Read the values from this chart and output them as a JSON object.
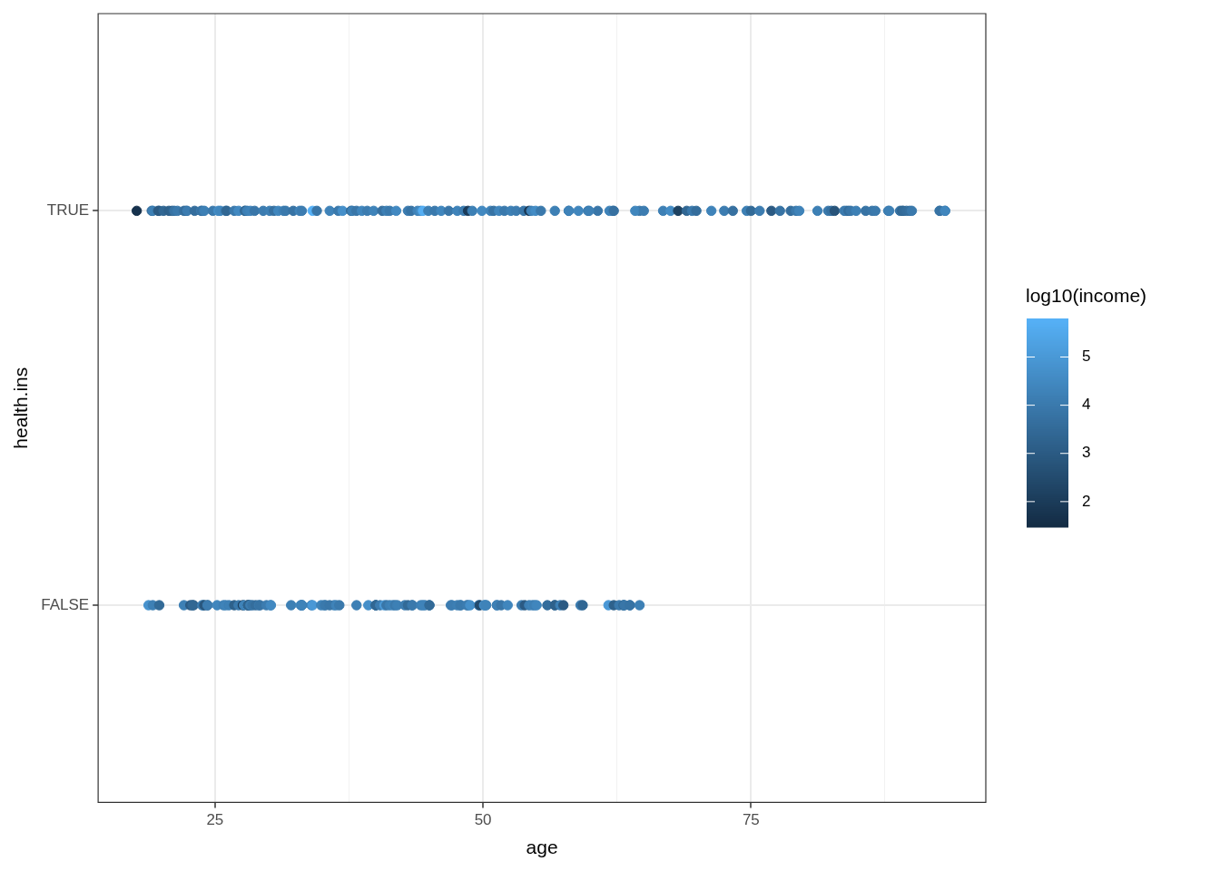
{
  "chart_data": {
    "type": "scatter",
    "xlabel": "age",
    "ylabel": "health.ins",
    "clabel": "log10(income)",
    "xlim": [
      14.1,
      96.9
    ],
    "xticks": [
      25,
      {
        "value": 37.5,
        "label": null
      },
      50,
      {
        "value": 62.5,
        "label": null
      },
      75,
      {
        "value": 87.5,
        "label": null
      }
    ],
    "categories": [
      "TRUE",
      "FALSE"
    ],
    "orientation": "horizontal",
    "clim": [
      1.47,
      5.8
    ],
    "cticks": [
      2,
      3,
      4,
      5
    ],
    "grid": true,
    "marker": "circle",
    "series": [
      {
        "values": [
          17.7,
          19.1,
          19.2,
          19.8,
          19.7,
          20.2,
          20.7,
          21.0,
          21.2,
          21.5,
          22.1,
          22.3,
          22.4,
          23.1,
          23.7,
          23.8,
          24.0,
          24.8,
          25.3,
          25.5,
          26.0,
          26.1,
          26.8,
          27.2,
          27.8,
          27.8,
          28.0,
          28.3,
          28.7,
          29.5,
          30.1,
          30.5,
          30.9,
          31.4,
          31.6,
          32.3,
          32.9,
          33.1,
          34.1,
          34.5,
          35.7,
          36.5,
          36.9,
          37.7,
          37.8,
          38.2,
          38.7,
          39.2,
          39.8,
          40.6,
          41.0,
          41.3,
          41.9,
          43.0,
          43.3,
          43.9,
          44.2,
          44.4,
          44.9,
          45.5,
          46.1,
          46.8,
          47.6,
          48.2,
          48.6,
          49.0,
          49.9,
          50.7,
          51.0,
          51.5,
          52.0,
          52.6,
          53.1,
          53.8,
          54.3,
          54.5,
          54.9,
          55.4,
          56.7,
          58.0,
          58.9,
          59.8,
          60.7,
          58.0,
          59.9,
          62.1,
          61.8,
          62.2,
          64.6,
          64.2,
          65.0,
          66.8,
          67.5,
          68.2,
          69.0,
          69.5,
          69.9,
          71.3,
          72.5,
          73.3,
          74.6,
          75.0,
          75.8,
          76.9,
          77.7,
          78.7,
          79.2,
          79.5,
          81.2,
          82.2,
          82.5,
          82.8,
          83.7,
          83.9,
          84.1,
          84.3,
          84.8,
          85.7,
          86.3,
          86.6,
          87.8,
          87.9,
          88.9,
          89.1,
          89.2,
          89.5,
          89.8,
          90.0,
          92.6,
          92.6,
          93.1,
          93.1
        ],
        "x": [
          "TRUE",
          "TRUE",
          "TRUE",
          "TRUE",
          "TRUE",
          "TRUE",
          "TRUE",
          "TRUE",
          "TRUE",
          "TRUE",
          "TRUE",
          "TRUE",
          "TRUE",
          "TRUE",
          "TRUE",
          "TRUE",
          "TRUE",
          "TRUE",
          "TRUE",
          "TRUE",
          "TRUE",
          "TRUE",
          "TRUE",
          "TRUE",
          "TRUE",
          "TRUE",
          "TRUE",
          "TRUE",
          "TRUE",
          "TRUE",
          "TRUE",
          "TRUE",
          "TRUE",
          "TRUE",
          "TRUE",
          "TRUE",
          "TRUE",
          "TRUE",
          "TRUE",
          "TRUE",
          "TRUE",
          "TRUE",
          "TRUE",
          "TRUE",
          "TRUE",
          "TRUE",
          "TRUE",
          "TRUE",
          "TRUE",
          "TRUE",
          "TRUE",
          "TRUE",
          "TRUE",
          "TRUE",
          "TRUE",
          "TRUE",
          "TRUE",
          "TRUE",
          "TRUE",
          "TRUE",
          "TRUE",
          "TRUE",
          "TRUE",
          "TRUE",
          "TRUE",
          "TRUE",
          "TRUE",
          "TRUE",
          "TRUE",
          "TRUE",
          "TRUE",
          "TRUE",
          "TRUE",
          "TRUE",
          "TRUE",
          "TRUE",
          "TRUE",
          "TRUE",
          "TRUE",
          "TRUE",
          "TRUE",
          "TRUE",
          "TRUE",
          "TRUE",
          "TRUE",
          "TRUE",
          "TRUE",
          "TRUE",
          "TRUE",
          "TRUE",
          "TRUE",
          "TRUE",
          "TRUE",
          "TRUE",
          "TRUE",
          "TRUE",
          "TRUE",
          "TRUE",
          "TRUE",
          "TRUE",
          "TRUE",
          "TRUE",
          "TRUE",
          "TRUE",
          "TRUE",
          "TRUE",
          "TRUE",
          "TRUE",
          "TRUE",
          "TRUE",
          "TRUE",
          "TRUE",
          "TRUE",
          "TRUE",
          "TRUE",
          "TRUE",
          "TRUE",
          "TRUE",
          "TRUE",
          "TRUE",
          "TRUE",
          "TRUE",
          "TRUE",
          "TRUE",
          "TRUE",
          "TRUE",
          "TRUE",
          "TRUE",
          "TRUE",
          "TRUE",
          "TRUE",
          "TRUE"
        ],
        "cvalues": [
          1.7,
          3.6,
          4.2,
          3.8,
          3.0,
          3.4,
          3.2,
          3.3,
          3.8,
          4.0,
          3.7,
          3.5,
          4.1,
          3.6,
          4.0,
          3.8,
          4.2,
          4.0,
          4.6,
          4.4,
          3.9,
          3.4,
          4.0,
          4.5,
          3.6,
          3.5,
          4.2,
          4.3,
          3.9,
          4.1,
          4.2,
          3.7,
          4.4,
          4.2,
          4.0,
          3.8,
          4.3,
          4.1,
          5.8,
          3.9,
          4.3,
          4.0,
          4.7,
          3.3,
          4.2,
          3.9,
          4.4,
          4.1,
          4.3,
          3.7,
          4.2,
          4.0,
          4.5,
          4.1,
          3.8,
          4.3,
          4.6,
          5.7,
          4.2,
          4.0,
          4.4,
          3.9,
          4.3,
          4.1,
          2.0,
          4.2,
          4.5,
          4.3,
          3.8,
          4.4,
          4.0,
          4.2,
          4.1,
          3.9,
          1.8,
          4.3,
          4.6,
          4.0,
          4.2,
          3.8,
          4.4,
          4.1,
          3.9,
          4.3,
          4.2,
          4.0,
          4.3,
          3.7,
          3.9,
          4.4,
          4.1,
          4.2,
          4.6,
          2.2,
          3.4,
          4.0,
          3.6,
          4.3,
          4.1,
          3.7,
          4.2,
          3.5,
          4.1,
          3.0,
          3.8,
          3.6,
          4.0,
          4.3,
          4.2,
          4.0,
          3.7,
          2.8,
          4.0,
          4.1,
          3.6,
          3.9,
          4.2,
          3.8,
          3.9,
          4.0,
          4.1,
          4.2,
          3.8,
          3.3,
          3.5,
          3.6,
          3.7,
          4.0,
          4.1,
          3.8,
          4.0,
          4.4
        ],
        "colors": [
          "#17324d",
          "#346d9c",
          "#3d80b5",
          "#3773a4",
          "#2b5a83",
          "#316793",
          "#2e618b",
          "#2f648f",
          "#3773a4",
          "#3a79ac",
          "#3670a0",
          "#326a97",
          "#3c7cb0",
          "#346d9c",
          "#3a79ac",
          "#3773a4",
          "#3d80b5",
          "#3a79ac",
          "#438cc5",
          "#4086bd",
          "#3976a8",
          "#316793",
          "#3a79ac",
          "#4289c1",
          "#346d9c",
          "#326a97",
          "#3d80b5",
          "#3f83b9",
          "#3976a8",
          "#3c7cb0",
          "#3d80b5",
          "#3670a0",
          "#4086bd",
          "#3d80b5",
          "#3a79ac",
          "#3773a4",
          "#3f83b9",
          "#3c7cb0",
          "#56b1f7",
          "#3976a8",
          "#3f83b9",
          "#3a79ac",
          "#458fc9",
          "#2f648f",
          "#3d80b5",
          "#3976a8",
          "#4086bd",
          "#3c7cb0",
          "#3f83b9",
          "#3670a0",
          "#3d80b5",
          "#3a79ac",
          "#4289c1",
          "#3c7cb0",
          "#3773a4",
          "#3f83b9",
          "#438cc5",
          "#55aef3",
          "#3d80b5",
          "#3a79ac",
          "#4086bd",
          "#3976a8",
          "#3f83b9",
          "#3c7cb0",
          "#1b3b59",
          "#3d80b5",
          "#4289c1",
          "#3f83b9",
          "#3773a4",
          "#4086bd",
          "#3a79ac",
          "#3d80b5",
          "#3c7cb0",
          "#3976a8",
          "#183551",
          "#3f83b9",
          "#438cc5",
          "#3a79ac",
          "#3d80b5",
          "#3773a4",
          "#4086bd",
          "#3c7cb0",
          "#3976a8",
          "#3f83b9",
          "#3d80b5",
          "#3a79ac",
          "#3f83b9",
          "#3670a0",
          "#3976a8",
          "#4086bd",
          "#3c7cb0",
          "#3d80b5",
          "#438cc5",
          "#1e4261",
          "#316793",
          "#3a79ac",
          "#346d9c",
          "#3f83b9",
          "#3c7cb0",
          "#3670a0",
          "#3d80b5",
          "#326a97",
          "#3c7cb0",
          "#2b5a83",
          "#3773a4",
          "#346d9c",
          "#3a79ac",
          "#3f83b9",
          "#3d80b5",
          "#3a79ac",
          "#3670a0",
          "#28547a",
          "#3a79ac",
          "#3c7cb0",
          "#346d9c",
          "#3976a8",
          "#3d80b5",
          "#3773a4",
          "#3976a8",
          "#3a79ac",
          "#3c7cb0",
          "#3d80b5",
          "#3773a4",
          "#2f648f",
          "#326a97",
          "#346d9c",
          "#3670a0",
          "#3a79ac",
          "#3c7cb0",
          "#3773a4",
          "#3a79ac",
          "#4086bd"
        ]
      },
      {
        "values": [
          18.8,
          19.2,
          19.8,
          22.1,
          22.7,
          23.0,
          22.9,
          23.9,
          23.8,
          24.0,
          24.3,
          24.3,
          25.2,
          25.8,
          26.0,
          26.3,
          26.8,
          27.2,
          27.6,
          27.7,
          28.1,
          28.1,
          28.1,
          28.3,
          28.5,
          28.8,
          29.1,
          29.2,
          29.8,
          30.2,
          30.2,
          32.1,
          33.0,
          33.1,
          33.1,
          33.1,
          34.0,
          34.1,
          34.9,
          35.2,
          35.3,
          36.1,
          35.7,
          36.3,
          36.6,
          38.2,
          39.3,
          40.0,
          40.0,
          40.0,
          40.4,
          40.8,
          41.0,
          41.3,
          41.6,
          41.8,
          42.0,
          42.7,
          43.0,
          43.4,
          43.4,
          44.2,
          44.6,
          44.4,
          45.0,
          45.0,
          47.1,
          47.0,
          47.6,
          47.9,
          47.9,
          48.6,
          48.5,
          48.8,
          49.6,
          49.7,
          50.1,
          50.3,
          50.2,
          51.3,
          51.3,
          51.7,
          52.3,
          53.6,
          53.9,
          54.3,
          54.6,
          54.8,
          55.0,
          56.0,
          56.7,
          56.7,
          57.2,
          57.5,
          59.1,
          59.3,
          61.7,
          62.2,
          62.7,
          63.1,
          63.1,
          63.7,
          63.2,
          63.7,
          64.6
        ],
        "x": [
          "FALSE",
          "FALSE",
          "FALSE",
          "FALSE",
          "FALSE",
          "FALSE",
          "FALSE",
          "FALSE",
          "FALSE",
          "FALSE",
          "FALSE",
          "FALSE",
          "FALSE",
          "FALSE",
          "FALSE",
          "FALSE",
          "FALSE",
          "FALSE",
          "FALSE",
          "FALSE",
          "FALSE",
          "FALSE",
          "FALSE",
          "FALSE",
          "FALSE",
          "FALSE",
          "FALSE",
          "FALSE",
          "FALSE",
          "FALSE",
          "FALSE",
          "FALSE",
          "FALSE",
          "FALSE",
          "FALSE",
          "FALSE",
          "FALSE",
          "FALSE",
          "FALSE",
          "FALSE",
          "FALSE",
          "FALSE",
          "FALSE",
          "FALSE",
          "FALSE",
          "FALSE",
          "FALSE",
          "FALSE",
          "FALSE",
          "FALSE",
          "FALSE",
          "FALSE",
          "FALSE",
          "FALSE",
          "FALSE",
          "FALSE",
          "FALSE",
          "FALSE",
          "FALSE",
          "FALSE",
          "FALSE",
          "FALSE",
          "FALSE",
          "FALSE",
          "FALSE",
          "FALSE",
          "FALSE",
          "FALSE",
          "FALSE",
          "FALSE",
          "FALSE",
          "FALSE",
          "FALSE",
          "FALSE",
          "FALSE",
          "FALSE",
          "FALSE",
          "FALSE",
          "FALSE",
          "FALSE",
          "FALSE",
          "FALSE",
          "FALSE",
          "FALSE",
          "FALSE",
          "FALSE",
          "FALSE",
          "FALSE",
          "FALSE",
          "FALSE",
          "FALSE",
          "FALSE",
          "FALSE",
          "FALSE",
          "FALSE",
          "FALSE",
          "FALSE",
          "FALSE",
          "FALSE",
          "FALSE",
          "FALSE",
          "FALSE",
          "FALSE",
          "FALSE",
          "FALSE"
        ],
        "cvalues": [
          4.8,
          4.2,
          3.5,
          4.2,
          3.0,
          3.0,
          3.4,
          4.3,
          4.1,
          2.9,
          3.2,
          4.1,
          4.4,
          4.2,
          4.3,
          4.2,
          3.2,
          4.0,
          2.0,
          4.3,
          2.3,
          3.2,
          3.3,
          4.1,
          3.8,
          3.6,
          4.0,
          3.8,
          4.1,
          4.2,
          4.5,
          4.2,
          4.4,
          4.5,
          4.1,
          4.3,
          4.2,
          5.0,
          4.3,
          4.2,
          4.0,
          4.4,
          3.9,
          4.3,
          4.0,
          4.2,
          4.7,
          4.3,
          3.5,
          3.4,
          4.1,
          5.0,
          3.9,
          4.2,
          4.3,
          4.0,
          4.2,
          4.1,
          3.5,
          3.9,
          4.0,
          4.2,
          4.1,
          4.3,
          4.2,
          3.5,
          4.4,
          4.1,
          4.2,
          4.3,
          4.0,
          4.2,
          4.1,
          4.7,
          4.3,
          2.5,
          4.8,
          4.2,
          4.3,
          4.3,
          4.2,
          3.9,
          4.4,
          4.1,
          3.0,
          4.2,
          4.3,
          4.2,
          4.4,
          3.6,
          4.0,
          3.2,
          4.2,
          3.0,
          4.1,
          3.4,
          5.0,
          3.2,
          4.0,
          4.2,
          3.5,
          4.4,
          3.9,
          3.8,
          4.2
        ],
        "colors": [
          "#4792cd",
          "#3d80b5",
          "#326a97",
          "#3d80b5",
          "#2b5a83",
          "#2b5a83",
          "#316793",
          "#3f83b9",
          "#3c7cb0",
          "#29577f",
          "#2e618b",
          "#3c7cb0",
          "#4086bd",
          "#3d80b5",
          "#3f83b9",
          "#3d80b5",
          "#2e618b",
          "#3a79ac",
          "#1b3b59",
          "#3f83b9",
          "#204566",
          "#2e618b",
          "#2f648f",
          "#3c7cb0",
          "#3773a4",
          "#346d9c",
          "#3a79ac",
          "#3773a4",
          "#3c7cb0",
          "#3d80b5",
          "#4289c1",
          "#3d80b5",
          "#4086bd",
          "#4289c1",
          "#3c7cb0",
          "#3f83b9",
          "#3d80b5",
          "#4a98d6",
          "#3f83b9",
          "#3d80b5",
          "#3a79ac",
          "#4086bd",
          "#3976a8",
          "#3f83b9",
          "#3a79ac",
          "#3d80b5",
          "#458fc9",
          "#3f83b9",
          "#326a97",
          "#316793",
          "#3c7cb0",
          "#4a98d6",
          "#3976a8",
          "#3d80b5",
          "#3f83b9",
          "#3a79ac",
          "#3d80b5",
          "#3c7cb0",
          "#326a97",
          "#3976a8",
          "#3a79ac",
          "#3d80b5",
          "#3c7cb0",
          "#3f83b9",
          "#3d80b5",
          "#326a97",
          "#4086bd",
          "#3c7cb0",
          "#3d80b5",
          "#3f83b9",
          "#3a79ac",
          "#3d80b5",
          "#3c7cb0",
          "#458fc9",
          "#3f83b9",
          "#234b6e",
          "#4792cd",
          "#3d80b5",
          "#3f83b9",
          "#3f83b9",
          "#3d80b5",
          "#3976a8",
          "#4086bd",
          "#3c7cb0",
          "#2b5a83",
          "#3d80b5",
          "#3f83b9",
          "#3d80b5",
          "#4086bd",
          "#346d9c",
          "#3a79ac",
          "#2e618b",
          "#3d80b5",
          "#2b5a83",
          "#3c7cb0",
          "#316793",
          "#4a98d6",
          "#2e618b",
          "#3a79ac",
          "#3d80b5",
          "#326a97",
          "#4086bd",
          "#3976a8",
          "#3773a4",
          "#3d80b5"
        ]
      }
    ]
  }
}
